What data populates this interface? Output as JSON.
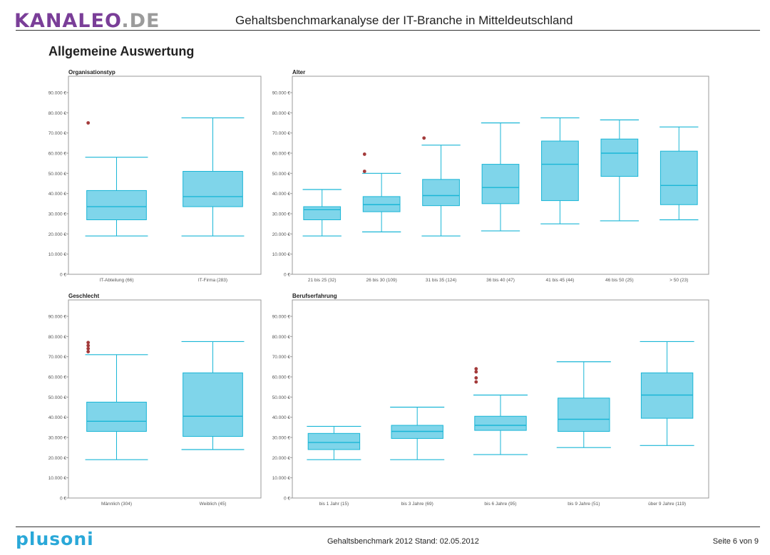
{
  "header": {
    "logo_text": "KANALEO",
    "logo_suffix": ".DE",
    "title": "Gehaltsbenchmarkanalyse der IT-Branche in Mitteldeutschland",
    "section_title": "Allgemeine Auswertung"
  },
  "footer": {
    "logo_text": "plusoni",
    "center_text": "Gehaltsbenchmark 2012 Stand: 02.05.2012",
    "page_text": "Seite 6 von 9"
  },
  "colors": {
    "box_fill": "#7fd5ea",
    "box_stroke": "#1ab6d6",
    "outlier": "#a33a3a",
    "axis_text": "#555555",
    "frame": "#999999"
  },
  "chart_data": [
    {
      "type": "boxplot",
      "title": "Organisationstyp",
      "ylim": [
        0,
        90000
      ],
      "yticks": [
        "0 €",
        "10.000 €",
        "20.000 €",
        "30.000 €",
        "40.000 €",
        "50.000 €",
        "60.000 €",
        "70.000 €",
        "80.000 €",
        "90.000 €"
      ],
      "categories": [
        "IT-Abteilung (66)",
        "IT-Firma (283)"
      ],
      "boxes": [
        {
          "low": 19000,
          "q1": 27000,
          "median": 33500,
          "q3": 41500,
          "high": 58000,
          "outliers": [
            75000
          ]
        },
        {
          "low": 19000,
          "q1": 33500,
          "median": 38500,
          "q3": 51000,
          "high": 77500,
          "outliers": []
        }
      ]
    },
    {
      "type": "boxplot",
      "title": "Alter",
      "ylim": [
        0,
        90000
      ],
      "yticks": [
        "0 €",
        "10.000 €",
        "20.000 €",
        "30.000 €",
        "40.000 €",
        "50.000 €",
        "60.000 €",
        "70.000 €",
        "80.000 €",
        "90.000 €"
      ],
      "categories": [
        "21 bis 25 (32)",
        "26 bis 30 (109)",
        "31 bis 35 (124)",
        "36 bis 40 (47)",
        "41 bis 45 (44)",
        "46 bis 50 (25)",
        "> 50 (23)"
      ],
      "boxes": [
        {
          "low": 19000,
          "q1": 27000,
          "median": 32000,
          "q3": 33500,
          "high": 42000,
          "outliers": []
        },
        {
          "low": 21000,
          "q1": 31000,
          "median": 34500,
          "q3": 38500,
          "high": 50000,
          "outliers": [
            51000,
            59500
          ]
        },
        {
          "low": 19000,
          "q1": 34000,
          "median": 39000,
          "q3": 47000,
          "high": 64000,
          "outliers": [
            67500
          ]
        },
        {
          "low": 21500,
          "q1": 35000,
          "median": 43000,
          "q3": 54500,
          "high": 75000,
          "outliers": []
        },
        {
          "low": 25000,
          "q1": 36500,
          "median": 54500,
          "q3": 66000,
          "high": 77500,
          "outliers": []
        },
        {
          "low": 26500,
          "q1": 48500,
          "median": 60000,
          "q3": 67000,
          "high": 76500,
          "outliers": []
        },
        {
          "low": 27000,
          "q1": 34500,
          "median": 44000,
          "q3": 61000,
          "high": 73000,
          "outliers": []
        }
      ]
    },
    {
      "type": "boxplot",
      "title": "Geschlecht",
      "ylim": [
        0,
        90000
      ],
      "yticks": [
        "0 €",
        "10.000 €",
        "20.000 €",
        "30.000 €",
        "40.000 €",
        "50.000 €",
        "60.000 €",
        "70.000 €",
        "80.000 €",
        "90.000 €"
      ],
      "categories": [
        "Männlich (304)",
        "Weiblich (45)"
      ],
      "boxes": [
        {
          "low": 19000,
          "q1": 33000,
          "median": 38000,
          "q3": 47500,
          "high": 71000,
          "outliers": [
            72500,
            74000,
            75500,
            77000
          ]
        },
        {
          "low": 24000,
          "q1": 30500,
          "median": 40500,
          "q3": 62000,
          "high": 77500,
          "outliers": []
        }
      ]
    },
    {
      "type": "boxplot",
      "title": "Berufserfahrung",
      "ylim": [
        0,
        90000
      ],
      "yticks": [
        "0 €",
        "10.000 €",
        "20.000 €",
        "30.000 €",
        "40.000 €",
        "50.000 €",
        "60.000 €",
        "70.000 €",
        "80.000 €",
        "90.000 €"
      ],
      "categories": [
        "bis 1 Jahr (15)",
        "bis 3 Jahre (69)",
        "bis 6 Jahre (95)",
        "bis 9 Jahre (51)",
        "über 9 Jahre (119)"
      ],
      "boxes": [
        {
          "low": 19000,
          "q1": 24000,
          "median": 27500,
          "q3": 32000,
          "high": 35500,
          "outliers": []
        },
        {
          "low": 19000,
          "q1": 29500,
          "median": 33000,
          "q3": 36000,
          "high": 45000,
          "outliers": []
        },
        {
          "low": 21500,
          "q1": 33500,
          "median": 36000,
          "q3": 40500,
          "high": 51000,
          "outliers": [
            57500,
            59500,
            62500,
            64000
          ]
        },
        {
          "low": 25000,
          "q1": 33000,
          "median": 39000,
          "q3": 49500,
          "high": 67500,
          "outliers": []
        },
        {
          "low": 26000,
          "q1": 39500,
          "median": 51000,
          "q3": 62000,
          "high": 77500,
          "outliers": []
        }
      ]
    }
  ]
}
